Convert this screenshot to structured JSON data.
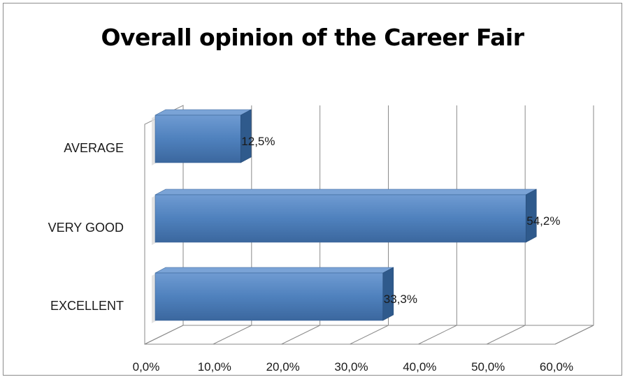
{
  "chart_data": {
    "type": "bar",
    "orientation": "horizontal",
    "style": "3d",
    "title": "Overall opinion of the Career Fair",
    "categories": [
      "AVERAGE",
      "VERY GOOD",
      "EXCELLENT"
    ],
    "values": [
      12.5,
      54.2,
      33.3
    ],
    "value_labels": [
      "12,5%",
      "54,2%",
      "33,3%"
    ],
    "xlim": [
      0,
      60
    ],
    "x_ticks": [
      0,
      10,
      20,
      30,
      40,
      50,
      60
    ],
    "x_tick_labels": [
      "0,0%",
      "10,0%",
      "20,0%",
      "30,0%",
      "40,0%",
      "50,0%",
      "60,0%"
    ],
    "grid": true,
    "legend": "none",
    "bar_color": "#4f81bd"
  }
}
